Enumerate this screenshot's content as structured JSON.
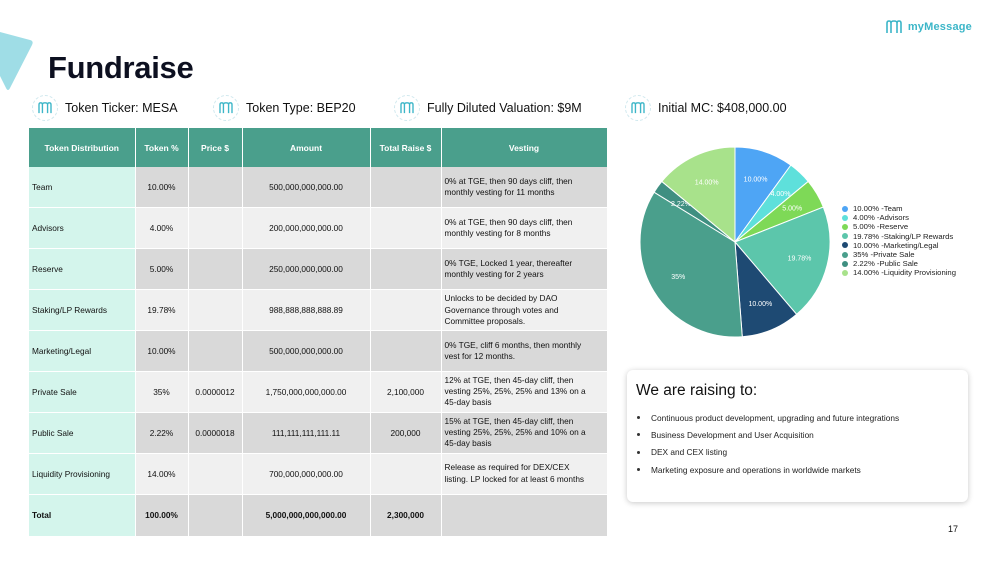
{
  "brand": {
    "name": "myMessage"
  },
  "title": "Fundraise",
  "info": [
    {
      "label": "Token Ticker: MESA"
    },
    {
      "label": "Token Type: BEP20"
    },
    {
      "label": "Fully Diluted Valuation: $9M"
    },
    {
      "label": "Initial MC: $408,000.00"
    }
  ],
  "table": {
    "headers": [
      "Token Distribution",
      "Token %",
      "Price $",
      "Amount",
      "Total Raise $",
      "Vesting"
    ],
    "rows": [
      {
        "name": "Team",
        "pct": "10.00%",
        "price": "",
        "amount": "500,000,000,000.00",
        "raise": "",
        "vest1": "0% at TGE, then 90 days cliff, then",
        "vest2": "monthly vesting for 11 months",
        "vest3": ""
      },
      {
        "name": "Advisors",
        "pct": "4.00%",
        "price": "",
        "amount": "200,000,000,000.00",
        "raise": "",
        "vest1": "0% at TGE, then 90 days cliff, then",
        "vest2": "monthly vesting for 8 months",
        "vest3": ""
      },
      {
        "name": "Reserve",
        "pct": "5.00%",
        "price": "",
        "amount": "250,000,000,000.00",
        "raise": "",
        "vest1": "0% TGE, Locked 1 year, thereafter",
        "vest2": "monthly vesting for 2 years",
        "vest3": ""
      },
      {
        "name": "Staking/LP Rewards",
        "pct": "19.78%",
        "price": "",
        "amount": "988,888,888,888.89",
        "raise": "",
        "vest1": "Unlocks to be decided by DAO",
        "vest2": "Governance through votes and",
        "vest3": "Committee proposals."
      },
      {
        "name": "Marketing/Legal",
        "pct": "10.00%",
        "price": "",
        "amount": "500,000,000,000.00",
        "raise": "",
        "vest1": "0% TGE, cliff 6 months, then monthly",
        "vest2": "vest for 12 months.",
        "vest3": ""
      },
      {
        "name": "Private Sale",
        "pct": "35%",
        "price": "0.0000012",
        "amount": "1,750,000,000,000.00",
        "raise": "2,100,000",
        "vest1": "12% at TGE, then 45-day cliff, then",
        "vest2": "vesting 25%, 25%, 25% and 13% on a",
        "vest3": "45-day basis"
      },
      {
        "name": "Public Sale",
        "pct": "2.22%",
        "price": "0.0000018",
        "amount": "111,111,111,111.11",
        "raise": "200,000",
        "vest1": "15% at TGE, then 45-day cliff, then",
        "vest2": "vesting 25%, 25%, 25% and 10% on a",
        "vest3": "45-day basis"
      },
      {
        "name": "Liquidity Provisioning",
        "pct": "14.00%",
        "price": "",
        "amount": "700,000,000,000.00",
        "raise": "",
        "vest1": "Release as required for DEX/CEX",
        "vest2": "listing. LP locked for at least 6 months",
        "vest3": ""
      }
    ],
    "total": {
      "name": "Total",
      "pct": "100.00%",
      "price": "",
      "amount": "5,000,000,000,000.00",
      "raise": "2,300,000",
      "vest": ""
    }
  },
  "chart_data": {
    "type": "pie",
    "slices": [
      {
        "label": "10.00% -Team",
        "value": 10.0,
        "display": "10.00%",
        "color": "#4ea5f5"
      },
      {
        "label": "4.00% -Advisors",
        "value": 4.0,
        "display": "4.00%",
        "color": "#5ee0db"
      },
      {
        "label": "5.00% -Reserve",
        "value": 5.0,
        "display": "5.00%",
        "color": "#7ed957"
      },
      {
        "label": "19.78% -Staking/LP Rewards",
        "value": 19.78,
        "display": "19.78%",
        "color": "#5cc6ab"
      },
      {
        "label": "10.00% -Marketing/Legal",
        "value": 10.0,
        "display": "10.00%",
        "color": "#1e4a73"
      },
      {
        "label": "35% -Private Sale",
        "value": 35.0,
        "display": "35%",
        "color": "#4a9f8c"
      },
      {
        "label": "2.22% -Public Sale",
        "value": 2.22,
        "display": "2.22%",
        "color": "#3f8f81"
      },
      {
        "label": "14.00% -Liquidity Provisioning",
        "value": 14.0,
        "display": "14.00%",
        "color": "#a8e28b"
      }
    ]
  },
  "raising": {
    "title": "We are raising to:",
    "items": [
      "Continuous product development, upgrading and future integrations",
      "Business Development and User Acquisition",
      "DEX and CEX listing",
      "Marketing exposure and operations in worldwide markets"
    ]
  },
  "page_number": "17",
  "colors": {
    "header": "#4a9f8c",
    "accent": "#3cb6c8",
    "first_col": "#d4f5ec"
  },
  "icons": {
    "brand": "m-logo-icon",
    "info": "m-badge-icon"
  }
}
